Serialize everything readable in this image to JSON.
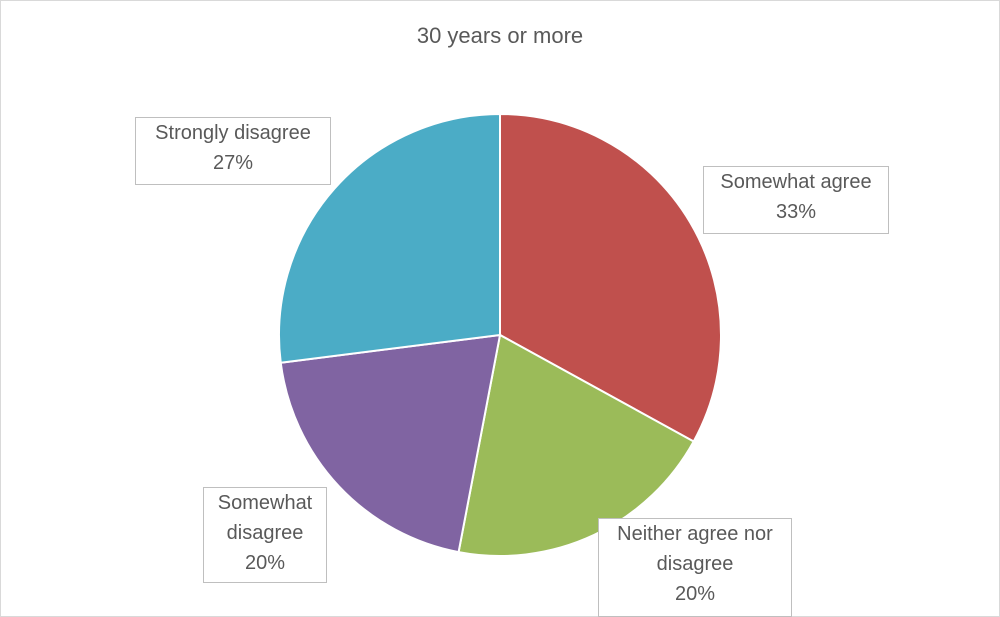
{
  "chart_data": {
    "type": "pie",
    "title": "30 years or more",
    "categories": [
      "Somewhat agree",
      "Neither agree nor disagree",
      "Somewhat disagree",
      "Strongly disagree"
    ],
    "values": [
      33,
      20,
      20,
      27
    ],
    "value_labels": [
      "33%",
      "20%",
      "20%",
      "27%"
    ],
    "colors": [
      "#c0504d",
      "#9bbb59",
      "#8064a2",
      "#4bacc6"
    ]
  }
}
